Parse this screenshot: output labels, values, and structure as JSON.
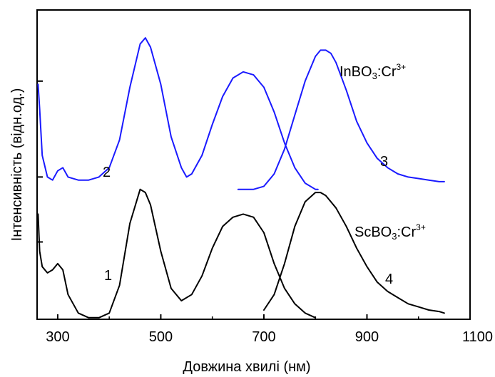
{
  "chart_data": {
    "type": "line",
    "xlabel": "Довжина хвилі (нм)",
    "ylabel": "Інтенсивність (відн.од.)",
    "xlim": [
      260,
      1100
    ],
    "ylim": [
      0,
      1
    ],
    "x_ticks": [
      300,
      500,
      700,
      900,
      1100
    ],
    "x_tick_labels": [
      "300",
      "500",
      "700",
      "900",
      "1100"
    ],
    "y_tick_values": [
      0.25,
      0.46,
      0.77,
      1.0
    ],
    "grid": false,
    "colors": {
      "InBO3": "#1a1aff",
      "ScBO3": "#000000"
    },
    "labels": {
      "inbo3": {
        "main": "InBO",
        "sub": "3",
        "mid": ":Cr",
        "sup": "3+"
      },
      "scbo3": {
        "main": "ScBO",
        "sub": "3",
        "mid": ":Cr",
        "sup": "3+"
      },
      "curve_2": "2",
      "curve_3": "3",
      "curve_1": "1",
      "curve_4": "4"
    },
    "series": [
      {
        "color": "#1a1aff",
        "x": [
          262,
          265,
          270,
          280,
          290,
          300,
          310,
          320,
          340,
          360,
          380,
          400,
          420,
          440,
          460,
          470,
          480,
          500,
          520,
          540,
          550,
          560,
          580,
          600,
          620,
          640,
          660,
          680,
          700,
          720,
          740,
          760,
          780,
          800,
          805
        ],
        "y": [
          0.76,
          0.68,
          0.53,
          0.46,
          0.45,
          0.48,
          0.49,
          0.46,
          0.45,
          0.45,
          0.46,
          0.49,
          0.58,
          0.75,
          0.89,
          0.91,
          0.88,
          0.76,
          0.59,
          0.49,
          0.46,
          0.47,
          0.53,
          0.63,
          0.72,
          0.78,
          0.8,
          0.79,
          0.75,
          0.67,
          0.57,
          0.49,
          0.44,
          0.42,
          0.42
        ]
      },
      {
        "color": "#1a1aff",
        "x": [
          650,
          680,
          700,
          720,
          740,
          760,
          780,
          800,
          810,
          820,
          830,
          840,
          860,
          880,
          900,
          920,
          940,
          960,
          980,
          1000,
          1020,
          1040,
          1050
        ],
        "y": [
          0.42,
          0.42,
          0.43,
          0.47,
          0.55,
          0.66,
          0.77,
          0.85,
          0.87,
          0.87,
          0.86,
          0.83,
          0.74,
          0.64,
          0.57,
          0.52,
          0.49,
          0.47,
          0.46,
          0.455,
          0.45,
          0.445,
          0.445
        ]
      },
      {
        "color": "#000000",
        "x": [
          262,
          265,
          270,
          280,
          290,
          300,
          310,
          320,
          340,
          360,
          380,
          400,
          420,
          440,
          460,
          470,
          480,
          500,
          520,
          540,
          560,
          580,
          600,
          620,
          640,
          660,
          680,
          700,
          720,
          740,
          760,
          780,
          800
        ],
        "y": [
          0.34,
          0.22,
          0.17,
          0.15,
          0.16,
          0.18,
          0.16,
          0.08,
          0.02,
          0.005,
          0.005,
          0.02,
          0.11,
          0.31,
          0.42,
          0.41,
          0.37,
          0.22,
          0.1,
          0.06,
          0.08,
          0.14,
          0.23,
          0.3,
          0.33,
          0.34,
          0.33,
          0.28,
          0.18,
          0.1,
          0.05,
          0.02,
          0.005
        ]
      },
      {
        "color": "#000000",
        "x": [
          700,
          720,
          740,
          760,
          780,
          800,
          810,
          820,
          840,
          860,
          880,
          900,
          920,
          940,
          960,
          980,
          1000,
          1020,
          1040,
          1050
        ],
        "y": [
          0.03,
          0.08,
          0.18,
          0.3,
          0.38,
          0.41,
          0.41,
          0.4,
          0.36,
          0.3,
          0.23,
          0.17,
          0.12,
          0.09,
          0.07,
          0.05,
          0.04,
          0.03,
          0.025,
          0.02
        ]
      }
    ]
  }
}
